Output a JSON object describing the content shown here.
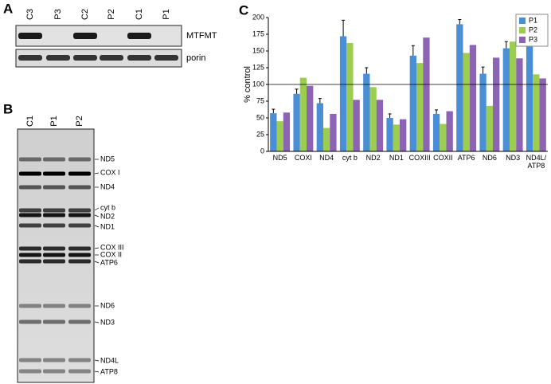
{
  "panel_a": {
    "label": "A",
    "lanes": [
      "C3",
      "P3",
      "C2",
      "P2",
      "C1",
      "P1"
    ],
    "blots": [
      "MTFMT",
      "porin"
    ]
  },
  "panel_b": {
    "label": "B",
    "lanes": [
      "C1",
      "P1",
      "P2"
    ],
    "bands": [
      "ND5",
      "COX I",
      "ND4",
      "cyt b",
      "ND2",
      "ND1",
      "COX III",
      "COX II",
      "ATP6",
      "ND6",
      "ND3",
      "ND4L",
      "ATP8"
    ]
  },
  "panel_c": {
    "label": "C"
  },
  "chart_data": {
    "type": "bar",
    "y_label": "% control",
    "categories": [
      "ND5",
      "COXI",
      "ND4",
      "cyt b",
      "ND2",
      "ND1",
      "COXIII",
      "COXII",
      "ATP6",
      "ND6",
      "ND3",
      "ND4L/ATP8"
    ],
    "series": [
      {
        "name": "P1",
        "color": "#4a8fd6",
        "values": [
          57,
          86,
          72,
          172,
          116,
          50,
          143,
          56,
          190,
          116,
          154,
          169
        ],
        "errors": [
          6,
          7,
          7,
          24,
          9,
          6,
          15,
          6,
          7,
          10,
          10,
          15
        ]
      },
      {
        "name": "P2",
        "color": "#9ccc50",
        "values": [
          45,
          110,
          35,
          162,
          96,
          40,
          132,
          41,
          147,
          68,
          164,
          115
        ]
      },
      {
        "name": "P3",
        "color": "#8d63b3",
        "values": [
          58,
          98,
          56,
          77,
          77,
          48,
          170,
          60,
          159,
          140,
          139,
          109
        ]
      }
    ],
    "ylim": [
      0,
      200
    ],
    "yticks": [
      0,
      25,
      50,
      75,
      100,
      125,
      150,
      175,
      200
    ],
    "reference_line": 100,
    "legend": "upper right"
  }
}
